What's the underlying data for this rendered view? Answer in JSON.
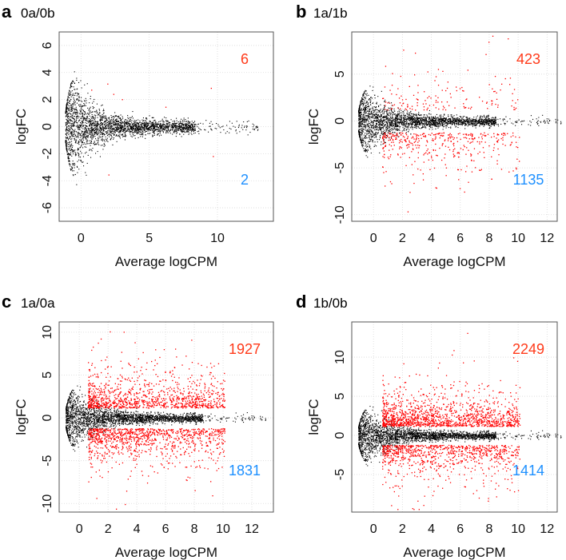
{
  "colors": {
    "up": "#ff3a1a",
    "down": "#1e90ff",
    "ns": "#000000",
    "sig": "#ff0000",
    "grid": "#d9d9d9"
  },
  "chart_data": [
    {
      "type": "scatter",
      "panel": "a",
      "title": "0a/0b",
      "xlabel": "Average logCPM",
      "ylabel": "logFC",
      "xlim": [
        -1.6,
        14.1
      ],
      "ylim": [
        -7,
        7
      ],
      "xticks": [
        0,
        5,
        10
      ],
      "yticks": [
        -6,
        -4,
        -2,
        0,
        2,
        4,
        6
      ],
      "grid": true,
      "up_count": "6",
      "down_count": "2"
    },
    {
      "type": "scatter",
      "panel": "b",
      "title": "1a/1b",
      "xlabel": "Average logCPM",
      "ylabel": "logFC",
      "xlim": [
        -1.5,
        12.7
      ],
      "ylim": [
        -10.7,
        9.5
      ],
      "xticks": [
        0,
        2,
        4,
        6,
        8,
        10,
        12
      ],
      "yticks": [
        -10,
        -5,
        0,
        5
      ],
      "grid": true,
      "up_count": "423",
      "down_count": "1135"
    },
    {
      "type": "scatter",
      "panel": "c",
      "title": "1a/0a",
      "xlabel": "Average logCPM",
      "ylabel": "logFC",
      "xlim": [
        -1.4,
        13.5
      ],
      "ylim": [
        -11,
        11.2
      ],
      "xticks": [
        0,
        2,
        4,
        6,
        8,
        10,
        12
      ],
      "yticks": [
        -10,
        -5,
        0,
        5,
        10
      ],
      "grid": true,
      "up_count": "1927",
      "down_count": "1831"
    },
    {
      "type": "scatter",
      "panel": "d",
      "title": "1b/0b",
      "xlabel": "Average logCPM",
      "ylabel": "logFC",
      "xlim": [
        -1.5,
        12.7
      ],
      "ylim": [
        -9.8,
        14.5
      ],
      "xticks": [
        0,
        2,
        4,
        6,
        8,
        10,
        12
      ],
      "yticks": [
        -5,
        0,
        5,
        10
      ],
      "grid": true,
      "up_count": "2249",
      "down_count": "1414"
    }
  ]
}
